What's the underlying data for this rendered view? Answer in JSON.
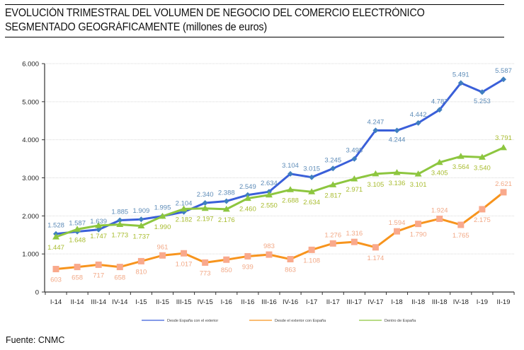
{
  "header": {
    "title_line1": "EVOLUCIÓN TRIMESTRAL DEL VOLUMEN DE NEGOCIO DEL COMERCIO ELECTRÓNICO",
    "title_line2": "SEGMENTADO GEOGRÁFICAMENTE (millones de euros)"
  },
  "footer": {
    "source": "Fuente: CNMC"
  },
  "chart_data": {
    "type": "line",
    "title": "EVOLUCIÓN TRIMESTRAL DEL VOLUMEN DE NEGOCIO DEL COMERCIO ELECTRÓNICO SEGMENTADO GEOGRÁFICAMENTE (millones de euros)",
    "xlabel": "",
    "ylabel": "",
    "ylim": [
      0,
      6000
    ],
    "yticks": [
      0,
      1000,
      2000,
      3000,
      4000,
      5000,
      6000
    ],
    "ytick_labels": [
      "0",
      "1.000",
      "2.000",
      "3.000",
      "4.000",
      "5.000",
      "6.000"
    ],
    "grid": true,
    "legend_position": "bottom",
    "categories": [
      "I-14",
      "II-14",
      "III-14",
      "IV-14",
      "I-15",
      "II-15",
      "III-15",
      "IV-15",
      "I-16",
      "II-16",
      "III-16",
      "IV-16",
      "I-17",
      "II-17",
      "III-17",
      "IV-17",
      "I-18",
      "II-18",
      "III-18",
      "IV-18",
      "I-19",
      "II-19"
    ],
    "series": [
      {
        "name": "Desde España con el exterior",
        "color": "#3A5FD9",
        "marker_color": "#3F7FBF",
        "label_color": "#5E8CB8",
        "marker": "diamond",
        "values": [
          1528,
          1587,
          1639,
          1885,
          1909,
          1995,
          2104,
          2340,
          2388,
          2549,
          2634,
          3104,
          3015,
          3245,
          3498,
          4247,
          4244,
          4442,
          4787,
          5491,
          5253,
          5587
        ],
        "labels": [
          "1.528",
          "1.587",
          "1.639",
          "1.885",
          "1.909",
          "1.995",
          "2.104",
          "2.340",
          "2.388",
          "2.549",
          "2.634",
          "3.104",
          "3.015",
          "3.245",
          "3.498",
          "4.247",
          "4.244",
          "4.442",
          "4.787",
          "5.491",
          "5.253",
          "5.587"
        ]
      },
      {
        "name": "Desde el exterior con España",
        "color": "#F7941D",
        "marker_color": "#F9A98C",
        "label_color": "#F2A987",
        "marker": "square",
        "values": [
          603,
          658,
          717,
          658,
          810,
          961,
          1017,
          773,
          850,
          939,
          983,
          863,
          1108,
          1276,
          1316,
          1174,
          1594,
          1790,
          1924,
          1765,
          2175,
          2621
        ],
        "labels": [
          "603",
          "658",
          "717",
          "658",
          "810",
          "961",
          "1.017",
          "773",
          "850",
          "939",
          "983",
          "863",
          "1.108",
          "1.276",
          "1.316",
          "1.174",
          "1.594",
          "1.790",
          "1.924",
          "1.765",
          "2.175",
          "2.621"
        ]
      },
      {
        "name": "Dentro de España",
        "color": "#8DC63F",
        "marker_color": "#8DC63F",
        "label_color": "#A8BC2E",
        "marker": "triangle",
        "values": [
          1447,
          1648,
          1747,
          1773,
          1737,
          1990,
          2182,
          2197,
          2176,
          2460,
          2550,
          2688,
          2634,
          2817,
          2971,
          3105,
          3136,
          3101,
          3405,
          3564,
          3540,
          3791
        ],
        "labels": [
          "1.447",
          "1.648",
          "1.747",
          "1.773",
          "1.737",
          "1.990",
          "2.182",
          "2.197",
          "2.176",
          "2.460",
          "2.550",
          "2.688",
          "2.634",
          "2.817",
          "2.971",
          "3.105",
          "3.136",
          "3.101",
          "3.405",
          "3.564",
          "3.540",
          "3.791"
        ]
      }
    ]
  }
}
